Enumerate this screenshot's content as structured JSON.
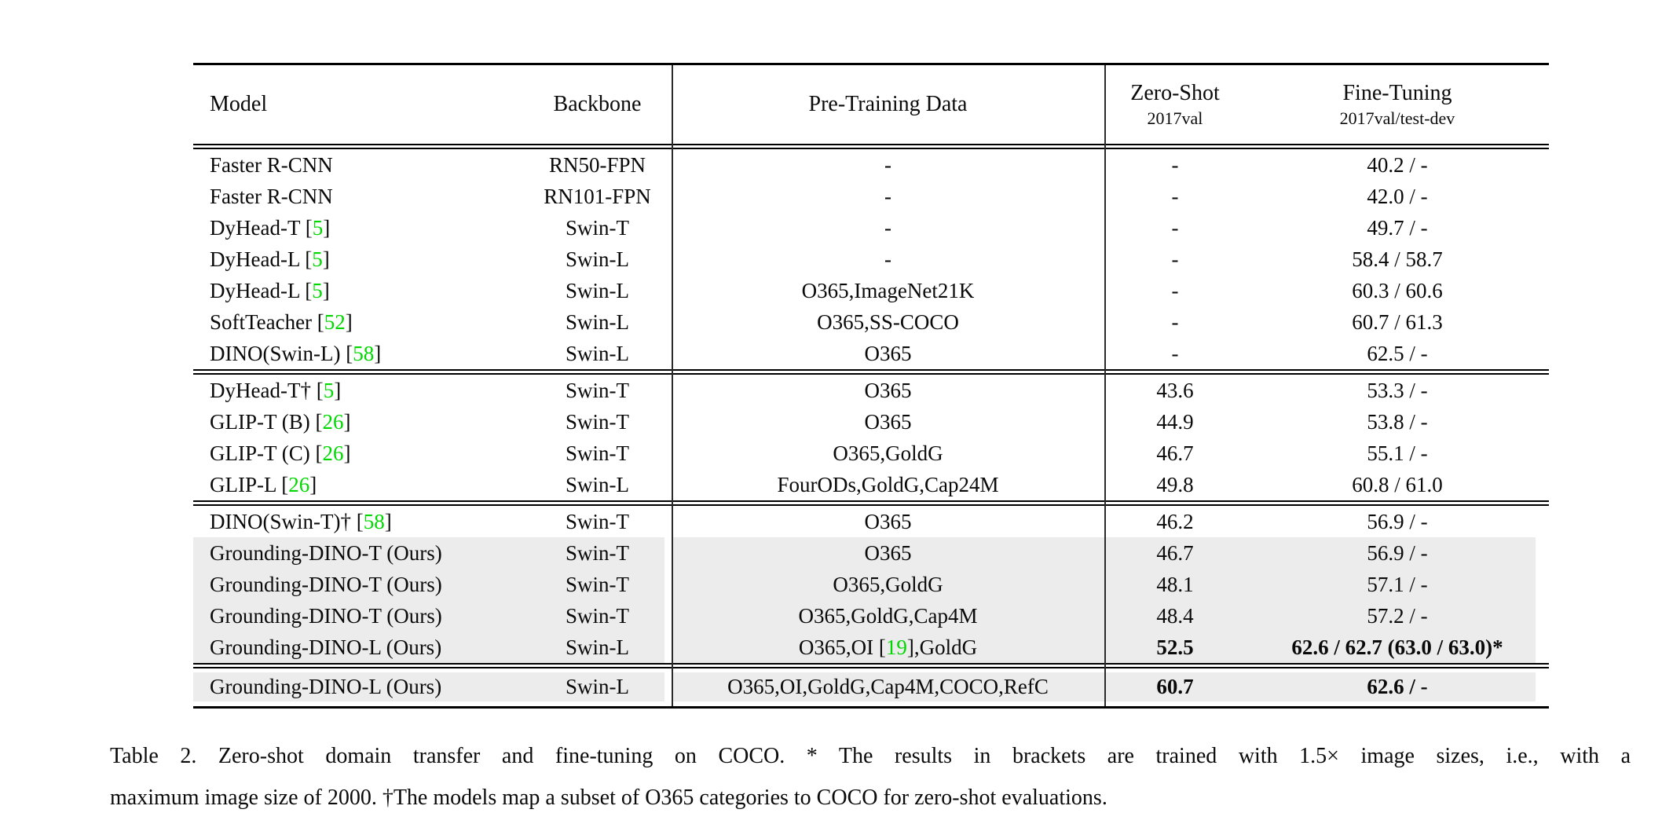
{
  "table": {
    "header": {
      "model": "Model",
      "backbone": "Backbone",
      "pretrain": "Pre-Training Data",
      "zero_shot": "Zero-Shot",
      "zero_shot_sub": "2017val",
      "fine_tuning": "Fine-Tuning",
      "fine_tuning_sub": "2017val/test-dev"
    },
    "sections": [
      {
        "rows": [
          {
            "model": "Faster R-CNN",
            "backbone": "RN50-FPN",
            "pretrain": "-",
            "zero_shot": "-",
            "fine_tuning": "40.2 / -",
            "highlight": false,
            "bold_metrics": false
          },
          {
            "model": "Faster R-CNN",
            "backbone": "RN101-FPN",
            "pretrain": "-",
            "zero_shot": "-",
            "fine_tuning": "42.0 / -",
            "highlight": false,
            "bold_metrics": false
          },
          {
            "model": "DyHead-T [5]",
            "backbone": "Swin-T",
            "pretrain": "-",
            "zero_shot": "-",
            "fine_tuning": "49.7 / -",
            "highlight": false,
            "bold_metrics": false
          },
          {
            "model": "DyHead-L [5]",
            "backbone": "Swin-L",
            "pretrain": "-",
            "zero_shot": "-",
            "fine_tuning": "58.4 / 58.7",
            "highlight": false,
            "bold_metrics": false
          },
          {
            "model": "DyHead-L [5]",
            "backbone": "Swin-L",
            "pretrain": "O365,ImageNet21K",
            "zero_shot": "-",
            "fine_tuning": "60.3 / 60.6",
            "highlight": false,
            "bold_metrics": false
          },
          {
            "model": "SoftTeacher [52]",
            "backbone": "Swin-L",
            "pretrain": "O365,SS-COCO",
            "zero_shot": "-",
            "fine_tuning": "60.7 / 61.3",
            "highlight": false,
            "bold_metrics": false
          },
          {
            "model": "DINO(Swin-L) [58]",
            "backbone": "Swin-L",
            "pretrain": "O365",
            "zero_shot": "-",
            "fine_tuning": "62.5 / -",
            "highlight": false,
            "bold_metrics": false
          }
        ]
      },
      {
        "rows": [
          {
            "model": "DyHead-T† [5]",
            "backbone": "Swin-T",
            "pretrain": "O365",
            "zero_shot": "43.6",
            "fine_tuning": "53.3 / -",
            "highlight": false,
            "bold_metrics": false
          },
          {
            "model": "GLIP-T (B) [26]",
            "backbone": "Swin-T",
            "pretrain": "O365",
            "zero_shot": "44.9",
            "fine_tuning": "53.8 / -",
            "highlight": false,
            "bold_metrics": false
          },
          {
            "model": "GLIP-T (C) [26]",
            "backbone": "Swin-T",
            "pretrain": "O365,GoldG",
            "zero_shot": "46.7",
            "fine_tuning": "55.1 / -",
            "highlight": false,
            "bold_metrics": false
          },
          {
            "model": "GLIP-L [26]",
            "backbone": "Swin-L",
            "pretrain": "FourODs,GoldG,Cap24M",
            "zero_shot": "49.8",
            "fine_tuning": "60.8 / 61.0",
            "highlight": false,
            "bold_metrics": false
          }
        ]
      },
      {
        "rows": [
          {
            "model": "DINO(Swin-T)† [58]",
            "backbone": "Swin-T",
            "pretrain": "O365",
            "zero_shot": "46.2",
            "fine_tuning": "56.9 / -",
            "highlight": false,
            "bold_metrics": false
          },
          {
            "model": "Grounding-DINO-T (Ours)",
            "backbone": "Swin-T",
            "pretrain": "O365",
            "zero_shot": "46.7",
            "fine_tuning": "56.9 / -",
            "highlight": true,
            "bold_metrics": false
          },
          {
            "model": "Grounding-DINO-T (Ours)",
            "backbone": "Swin-T",
            "pretrain": "O365,GoldG",
            "zero_shot": "48.1",
            "fine_tuning": "57.1 / -",
            "highlight": true,
            "bold_metrics": false
          },
          {
            "model": "Grounding-DINO-T (Ours)",
            "backbone": "Swin-T",
            "pretrain": "O365,GoldG,Cap4M",
            "zero_shot": "48.4",
            "fine_tuning": "57.2 / -",
            "highlight": true,
            "bold_metrics": false
          },
          {
            "model": "Grounding-DINO-L (Ours)",
            "backbone": "Swin-L",
            "pretrain": "O365,OI [19],GoldG",
            "zero_shot": "52.5",
            "fine_tuning": "62.6 / 62.7 (63.0 / 63.0)*",
            "highlight": true,
            "bold_metrics": true
          }
        ]
      },
      {
        "rows": [
          {
            "model": "Grounding-DINO-L (Ours)",
            "backbone": "Swin-L",
            "pretrain": "O365,OI,GoldG,Cap4M,COCO,RefC",
            "zero_shot": "60.7",
            "fine_tuning": "62.6 / -",
            "highlight": true,
            "bold_metrics": true
          }
        ]
      }
    ]
  },
  "caption": {
    "line1": "Table 2.  Zero-shot domain transfer and fine-tuning on COCO. * The results in brackets are trained with 1.5× image sizes, i.e., with a",
    "line2": "maximum image size of 2000. †The models map a subset of O365 categories to COCO for zero-shot evaluations."
  },
  "colors": {
    "citation_green": "#00d800",
    "row_highlight": "#ececec",
    "rule_black": "#000000"
  }
}
